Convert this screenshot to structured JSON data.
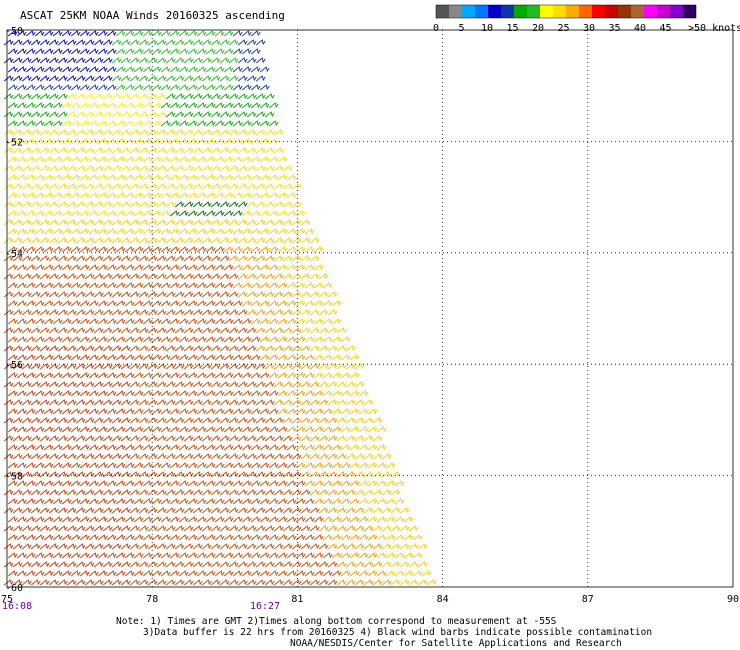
{
  "title": "ASCAT 25KM NOAA Winds 20160325 ascending",
  "legend": {
    "colors": [
      "#555555",
      "#888888",
      "#00aaff",
      "#0077ff",
      "#0000cc",
      "#1133aa",
      "#00aa00",
      "#22bb22",
      "#ffff00",
      "#ffdd00",
      "#ffaa00",
      "#ff6600",
      "#ff0000",
      "#cc0000",
      "#993300",
      "#aa6633",
      "#ff00ff",
      "#cc00cc",
      "#8800cc",
      "#330066"
    ],
    "labels": [
      "0",
      "5",
      "10",
      "15",
      "20",
      "25",
      "30",
      "35",
      "40",
      "45",
      ">50 knots"
    ]
  },
  "map": {
    "x_ticks": [
      "75",
      "78",
      "81",
      "84",
      "87",
      "90"
    ],
    "y_ticks": [
      "-50",
      "-52",
      "-54",
      "-56",
      "-58",
      "-60"
    ],
    "lon_range": [
      75,
      90
    ],
    "lat_range": [
      -60,
      -50
    ],
    "grid": true,
    "swath_color_zones": [
      "blue",
      "green",
      "yellow",
      "orange",
      "red-brown"
    ]
  },
  "times": [
    "16:08",
    "16:27"
  ],
  "notes": [
    "Note: 1) Times are GMT 2)Times along bottom correspond to measurement at -55S",
    "3)Data buffer is 22 hrs from 20160325 4) Black wind barbs indicate possible contamination",
    "NOAA/NESDIS/Center for Satellite Applications and Research"
  ]
}
